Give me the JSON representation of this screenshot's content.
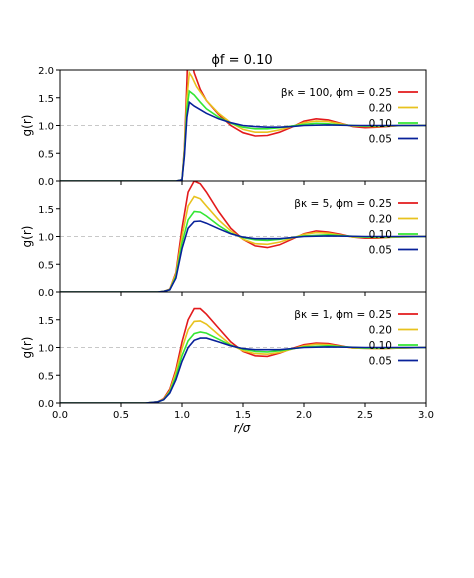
{
  "figure_title": "ϕf = 0.10",
  "chart_data": [
    {
      "type": "line",
      "title": "",
      "xlabel": "r/σ",
      "ylabel": "g(r)",
      "xlim": [
        0.0,
        3.0
      ],
      "ylim": [
        0.0,
        2.0
      ],
      "x_ticks": [
        "0.0",
        "0.5",
        "1.0",
        "1.5",
        "2.0",
        "2.5",
        "3.0"
      ],
      "y_ticks": [
        "0.0",
        "0.5",
        "1.0",
        "1.5",
        "2.0"
      ],
      "reference_line": {
        "y": 1.0,
        "style": "dashed",
        "color": "#c8c8c8"
      },
      "legend_header": "βκ = 100, ϕm = 0.25",
      "legend_position": "top-right",
      "series": [
        {
          "name": "0.25",
          "color": "#e31a1c",
          "x": [
            0.95,
            1.0,
            1.02,
            1.04,
            1.05,
            1.07,
            1.1,
            1.15,
            1.2,
            1.3,
            1.4,
            1.5,
            1.6,
            1.7,
            1.8,
            1.9,
            2.0,
            2.1,
            2.2,
            2.3,
            2.4,
            2.5,
            2.6,
            2.8,
            3.0
          ],
          "y": [
            0.0,
            0.02,
            0.6,
            1.8,
            2.45,
            2.25,
            1.95,
            1.65,
            1.45,
            1.2,
            1.0,
            0.87,
            0.81,
            0.82,
            0.88,
            0.97,
            1.08,
            1.12,
            1.1,
            1.04,
            0.98,
            0.96,
            0.97,
            1.0,
            1.0
          ]
        },
        {
          "name": "0.20",
          "color": "#e8c21e",
          "x": [
            0.95,
            1.0,
            1.02,
            1.04,
            1.06,
            1.08,
            1.12,
            1.2,
            1.3,
            1.4,
            1.5,
            1.6,
            1.7,
            1.8,
            1.9,
            2.0,
            2.1,
            2.2,
            2.3,
            2.4,
            2.6,
            2.8,
            3.0
          ],
          "y": [
            0.0,
            0.02,
            0.55,
            1.5,
            1.95,
            1.88,
            1.7,
            1.45,
            1.22,
            1.05,
            0.93,
            0.88,
            0.88,
            0.92,
            0.98,
            1.05,
            1.08,
            1.07,
            1.03,
            0.99,
            0.98,
            1.0,
            1.0
          ]
        },
        {
          "name": "0.10",
          "color": "#33e633",
          "x": [
            0.95,
            1.0,
            1.02,
            1.04,
            1.06,
            1.1,
            1.15,
            1.2,
            1.3,
            1.4,
            1.5,
            1.6,
            1.7,
            1.8,
            1.9,
            2.0,
            2.1,
            2.2,
            2.3,
            2.5,
            2.8,
            3.0
          ],
          "y": [
            0.0,
            0.02,
            0.5,
            1.3,
            1.62,
            1.55,
            1.42,
            1.3,
            1.15,
            1.04,
            0.97,
            0.94,
            0.94,
            0.96,
            0.99,
            1.02,
            1.04,
            1.03,
            1.01,
            0.99,
            1.0,
            1.0
          ]
        },
        {
          "name": "0.05",
          "color": "#08219a",
          "x": [
            0.95,
            1.0,
            1.02,
            1.04,
            1.06,
            1.1,
            1.2,
            1.3,
            1.4,
            1.5,
            1.6,
            1.7,
            1.8,
            1.9,
            2.0,
            2.2,
            2.4,
            2.6,
            3.0
          ],
          "y": [
            0.0,
            0.02,
            0.45,
            1.15,
            1.42,
            1.35,
            1.22,
            1.12,
            1.05,
            1.0,
            0.98,
            0.97,
            0.97,
            0.98,
            1.0,
            1.01,
            1.0,
            1.0,
            1.0
          ]
        }
      ]
    },
    {
      "type": "line",
      "title": "",
      "xlabel": "r/σ",
      "ylabel": "g(r)",
      "xlim": [
        0.0,
        3.0
      ],
      "ylim": [
        0.0,
        2.0
      ],
      "x_ticks": [
        "0.0",
        "0.5",
        "1.0",
        "1.5",
        "2.0",
        "2.5",
        "3.0"
      ],
      "y_ticks": [
        "0.0",
        "0.5",
        "1.0",
        "1.5"
      ],
      "reference_line": {
        "y": 1.0,
        "style": "dashed",
        "color": "#c8c8c8"
      },
      "legend_header": "βκ = 5, ϕm = 0.25",
      "legend_position": "top-right",
      "series": [
        {
          "name": "0.25",
          "color": "#e31a1c",
          "x": [
            0.8,
            0.85,
            0.9,
            0.95,
            1.0,
            1.05,
            1.1,
            1.15,
            1.2,
            1.3,
            1.4,
            1.5,
            1.6,
            1.7,
            1.8,
            1.9,
            2.0,
            2.1,
            2.2,
            2.3,
            2.4,
            2.5,
            2.6,
            2.8,
            3.0
          ],
          "y": [
            0.0,
            0.01,
            0.05,
            0.35,
            1.15,
            1.8,
            2.0,
            1.95,
            1.8,
            1.45,
            1.15,
            0.95,
            0.83,
            0.8,
            0.85,
            0.95,
            1.05,
            1.1,
            1.08,
            1.04,
            0.99,
            0.97,
            0.97,
            1.0,
            1.0
          ]
        },
        {
          "name": "0.20",
          "color": "#e8c21e",
          "x": [
            0.8,
            0.85,
            0.9,
            0.95,
            1.0,
            1.05,
            1.1,
            1.15,
            1.2,
            1.3,
            1.4,
            1.5,
            1.6,
            1.7,
            1.8,
            1.9,
            2.0,
            2.1,
            2.2,
            2.4,
            2.6,
            3.0
          ],
          "y": [
            0.0,
            0.01,
            0.05,
            0.32,
            1.0,
            1.55,
            1.72,
            1.68,
            1.55,
            1.3,
            1.1,
            0.95,
            0.87,
            0.86,
            0.9,
            0.97,
            1.04,
            1.07,
            1.06,
            0.99,
            0.98,
            1.0
          ]
        },
        {
          "name": "0.10",
          "color": "#33e633",
          "x": [
            0.8,
            0.85,
            0.9,
            0.95,
            1.0,
            1.05,
            1.1,
            1.15,
            1.2,
            1.3,
            1.4,
            1.5,
            1.6,
            1.7,
            1.8,
            2.0,
            2.2,
            2.5,
            3.0
          ],
          "y": [
            0.0,
            0.01,
            0.04,
            0.28,
            0.88,
            1.3,
            1.45,
            1.44,
            1.37,
            1.2,
            1.06,
            0.98,
            0.94,
            0.93,
            0.95,
            1.01,
            1.03,
            0.99,
            1.0
          ]
        },
        {
          "name": "0.05",
          "color": "#08219a",
          "x": [
            0.8,
            0.85,
            0.9,
            0.95,
            1.0,
            1.05,
            1.1,
            1.15,
            1.2,
            1.3,
            1.4,
            1.5,
            1.6,
            1.8,
            2.0,
            2.2,
            2.5,
            3.0
          ],
          "y": [
            0.0,
            0.01,
            0.04,
            0.25,
            0.78,
            1.15,
            1.27,
            1.28,
            1.24,
            1.14,
            1.05,
            0.99,
            0.96,
            0.96,
            1.0,
            1.01,
            1.0,
            1.0
          ]
        }
      ]
    },
    {
      "type": "line",
      "title": "",
      "xlabel": "r/σ",
      "ylabel": "g(r)",
      "xlim": [
        0.0,
        3.0
      ],
      "ylim": [
        0.0,
        2.0
      ],
      "x_ticks": [
        "0.0",
        "0.5",
        "1.0",
        "1.5",
        "2.0",
        "2.5",
        "3.0"
      ],
      "y_ticks": [
        "0.0",
        "0.5",
        "1.0",
        "1.5"
      ],
      "reference_line": {
        "y": 1.0,
        "style": "dashed",
        "color": "#c8c8c8"
      },
      "legend_header": "βκ = 1, ϕm = 0.25",
      "legend_position": "top-right",
      "series": [
        {
          "name": "0.25",
          "color": "#e31a1c",
          "x": [
            0.6,
            0.7,
            0.8,
            0.85,
            0.9,
            0.95,
            1.0,
            1.05,
            1.1,
            1.15,
            1.2,
            1.3,
            1.4,
            1.5,
            1.6,
            1.7,
            1.8,
            1.9,
            2.0,
            2.1,
            2.2,
            2.3,
            2.4,
            2.6,
            3.0
          ],
          "y": [
            0.0,
            0.0,
            0.02,
            0.08,
            0.25,
            0.6,
            1.1,
            1.5,
            1.7,
            1.7,
            1.6,
            1.35,
            1.1,
            0.93,
            0.85,
            0.84,
            0.9,
            0.98,
            1.05,
            1.08,
            1.07,
            1.03,
            0.99,
            0.98,
            1.0
          ]
        },
        {
          "name": "0.20",
          "color": "#e8c21e",
          "x": [
            0.6,
            0.7,
            0.8,
            0.85,
            0.9,
            0.95,
            1.0,
            1.05,
            1.1,
            1.15,
            1.2,
            1.3,
            1.4,
            1.5,
            1.6,
            1.7,
            1.8,
            2.0,
            2.1,
            2.2,
            2.4,
            2.6,
            3.0
          ],
          "y": [
            0.0,
            0.0,
            0.02,
            0.07,
            0.22,
            0.55,
            0.98,
            1.32,
            1.47,
            1.48,
            1.42,
            1.23,
            1.05,
            0.94,
            0.89,
            0.88,
            0.91,
            1.03,
            1.06,
            1.05,
            0.99,
            0.98,
            1.0
          ]
        },
        {
          "name": "0.10",
          "color": "#33e633",
          "x": [
            0.6,
            0.7,
            0.8,
            0.85,
            0.9,
            0.95,
            1.0,
            1.05,
            1.1,
            1.15,
            1.2,
            1.3,
            1.4,
            1.5,
            1.6,
            1.7,
            1.8,
            2.0,
            2.2,
            2.5,
            3.0
          ],
          "y": [
            0.0,
            0.0,
            0.02,
            0.06,
            0.2,
            0.48,
            0.85,
            1.12,
            1.25,
            1.28,
            1.26,
            1.15,
            1.04,
            0.97,
            0.93,
            0.92,
            0.94,
            1.01,
            1.03,
            0.99,
            1.0
          ]
        },
        {
          "name": "0.05",
          "color": "#08219a",
          "x": [
            0.6,
            0.7,
            0.8,
            0.85,
            0.9,
            0.95,
            1.0,
            1.05,
            1.1,
            1.15,
            1.2,
            1.3,
            1.4,
            1.5,
            1.6,
            1.8,
            2.0,
            2.2,
            2.5,
            3.0
          ],
          "y": [
            0.0,
            0.0,
            0.02,
            0.06,
            0.18,
            0.42,
            0.75,
            1.0,
            1.13,
            1.17,
            1.17,
            1.1,
            1.03,
            0.98,
            0.96,
            0.96,
            1.0,
            1.01,
            1.0,
            1.0
          ]
        }
      ]
    }
  ]
}
